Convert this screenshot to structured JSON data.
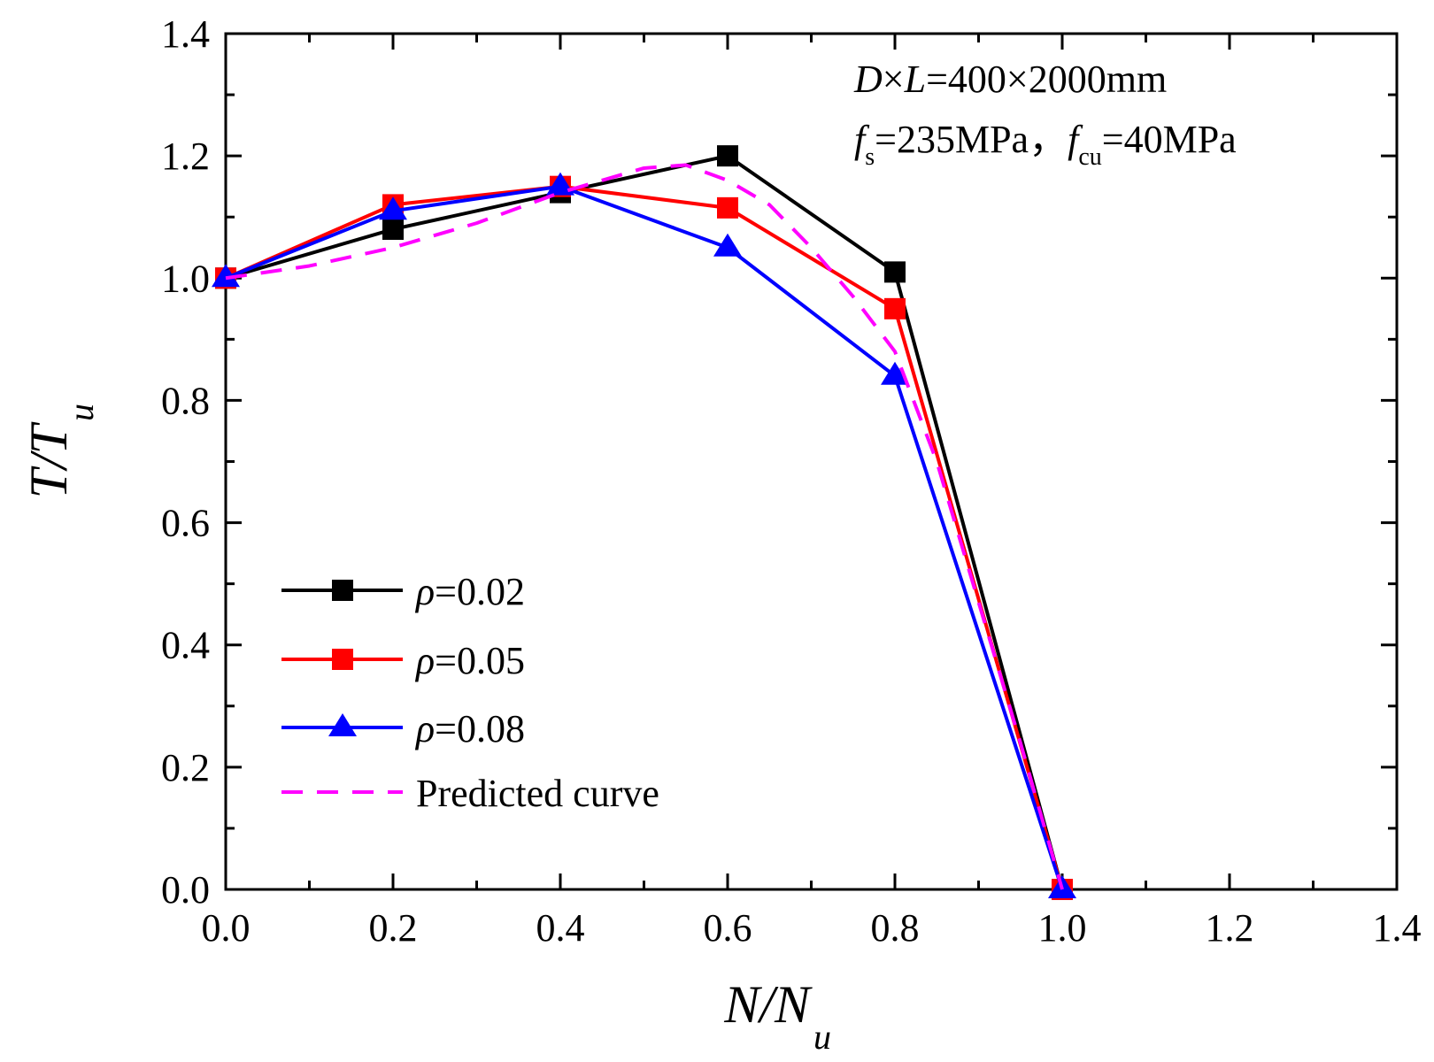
{
  "chart_data": {
    "type": "line",
    "xlabel": {
      "main": "N/N",
      "sub": "u"
    },
    "ylabel": {
      "main": "T/T",
      "sub": "u"
    },
    "xlim": [
      0.0,
      1.4
    ],
    "ylim": [
      0.0,
      1.4
    ],
    "x_ticks": [
      "0.0",
      "0.2",
      "0.4",
      "0.6",
      "0.8",
      "1.0",
      "1.2",
      "1.4"
    ],
    "y_ticks": [
      "0.0",
      "0.2",
      "0.4",
      "0.6",
      "0.8",
      "1.0",
      "1.2",
      "1.4"
    ],
    "grid": false,
    "legend_position": "lower-left",
    "annotation": {
      "line1": {
        "D": "D",
        "times": "×",
        "L": "L",
        "rest": "=400×2000mm"
      },
      "line2": {
        "fs": "f",
        "fs_sub": "s",
        "fs_val": "=235MPa，",
        "fcu": "f",
        "fcu_sub": "cu",
        "fcu_val": "=40MPa"
      }
    },
    "series": [
      {
        "name": "ρ=0.02",
        "rho": "ρ",
        "rho_val": "=0.02",
        "color": "#000000",
        "marker": "square",
        "style": "solid",
        "x": [
          0.0,
          0.2,
          0.4,
          0.6,
          0.8,
          1.0
        ],
        "y": [
          1.0,
          1.08,
          1.14,
          1.2,
          1.01,
          0.0
        ]
      },
      {
        "name": "ρ=0.05",
        "rho": "ρ",
        "rho_val": "=0.05",
        "color": "#ff0000",
        "marker": "square",
        "style": "solid",
        "x": [
          0.0,
          0.2,
          0.4,
          0.6,
          0.8,
          1.0
        ],
        "y": [
          1.0,
          1.12,
          1.15,
          1.115,
          0.95,
          0.0
        ]
      },
      {
        "name": "ρ=0.08",
        "rho": "ρ",
        "rho_val": "=0.08",
        "color": "#0000ff",
        "marker": "triangle",
        "style": "solid",
        "x": [
          0.0,
          0.2,
          0.4,
          0.6,
          0.8,
          1.0
        ],
        "y": [
          1.0,
          1.11,
          1.15,
          1.05,
          0.84,
          0.0
        ]
      },
      {
        "name": "Predicted curve",
        "color": "#ff00ff",
        "marker": "none",
        "style": "dashed",
        "x": [
          0.0,
          0.1,
          0.2,
          0.3,
          0.4,
          0.5,
          0.55,
          0.6,
          0.65,
          0.7,
          0.75,
          0.8,
          0.85,
          0.9,
          0.95,
          1.0
        ],
        "y": [
          1.0,
          1.02,
          1.05,
          1.09,
          1.14,
          1.18,
          1.185,
          1.16,
          1.12,
          1.05,
          0.97,
          0.88,
          0.7,
          0.47,
          0.24,
          0.0
        ]
      }
    ]
  }
}
